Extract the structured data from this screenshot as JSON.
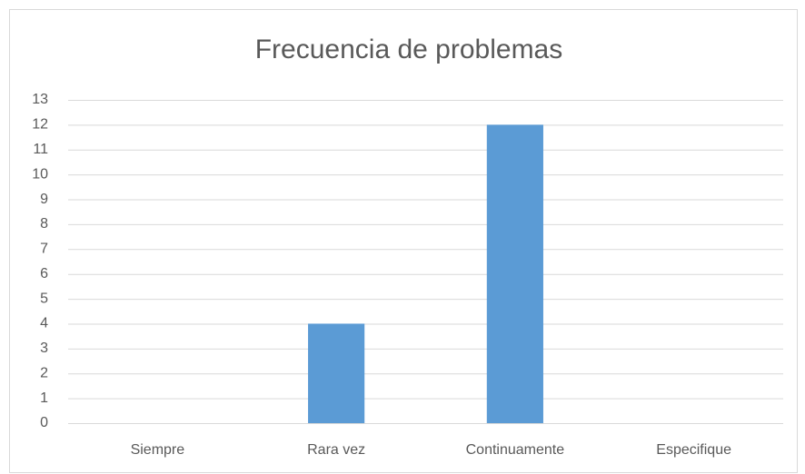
{
  "chart_data": {
    "type": "bar",
    "title": "Frecuencia de problemas",
    "categories": [
      "Siempre",
      "Rara vez",
      "Continuamente",
      "Especifique"
    ],
    "values": [
      0,
      4,
      12,
      0
    ],
    "color": "#5b9bd5",
    "ylim": [
      0,
      13
    ],
    "yticks": [
      0,
      1,
      2,
      3,
      4,
      5,
      6,
      7,
      8,
      9,
      10,
      11,
      12,
      13
    ],
    "grid": true
  }
}
